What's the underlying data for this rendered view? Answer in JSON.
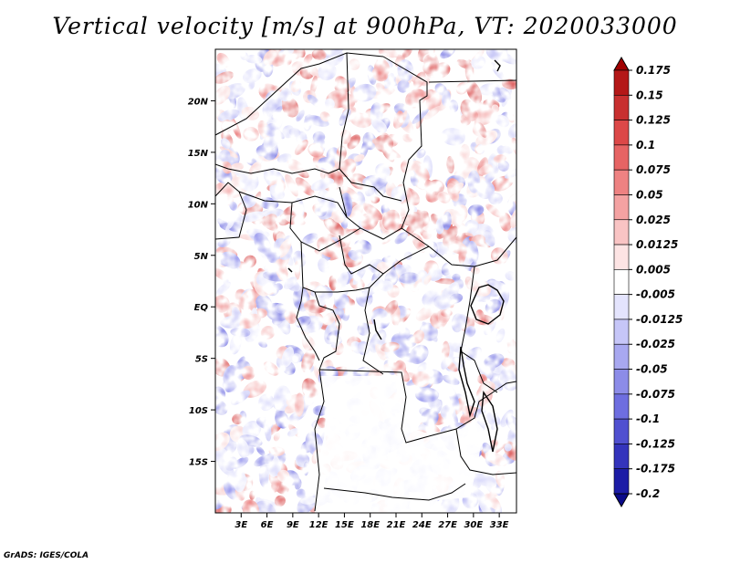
{
  "title": "Vertical velocity [m/s] at 900hPa, VT: 2020033000",
  "footer": "GrADS: IGES/COLA",
  "chart_data": {
    "type": "heatmap",
    "variable": "Vertical velocity",
    "units": "m/s",
    "level": "900hPa",
    "valid_time": "2020033000",
    "lon_range": [
      0,
      35
    ],
    "lat_range": [
      -20,
      25
    ],
    "lat_ticks": [
      "20N",
      "15N",
      "10N",
      "5N",
      "EQ",
      "5S",
      "10S",
      "15S"
    ],
    "lat_tick_values": [
      20,
      15,
      10,
      5,
      0,
      -5,
      -10,
      -15
    ],
    "lon_ticks": [
      "3E",
      "6E",
      "9E",
      "12E",
      "15E",
      "18E",
      "21E",
      "24E",
      "27E",
      "30E",
      "33E"
    ],
    "lon_tick_values": [
      3,
      6,
      9,
      12,
      15,
      18,
      21,
      24,
      27,
      30,
      33
    ],
    "colorbar_labels": [
      "0.175",
      "0.15",
      "0.125",
      "0.1",
      "0.075",
      "0.05",
      "0.025",
      "0.0125",
      "0.005",
      "-0.005",
      "-0.0125",
      "-0.025",
      "-0.05",
      "-0.075",
      "-0.1",
      "-0.125",
      "-0.175",
      "-0.2"
    ],
    "colorbar_colors": [
      "#a00000",
      "#b41818",
      "#c83030",
      "#dc4848",
      "#e66464",
      "#ee8282",
      "#f4a2a2",
      "#f9c4c4",
      "#fde4e4",
      "#ffffff",
      "#e4e4fd",
      "#c6c6f8",
      "#a8a8f0",
      "#8c8ce8",
      "#6e6ee0",
      "#5050d0",
      "#3434bc",
      "#1c1ca6",
      "#0a0a8a"
    ]
  }
}
